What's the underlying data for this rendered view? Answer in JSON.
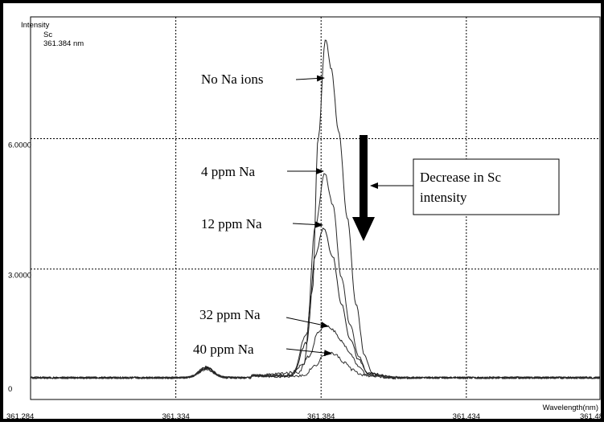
{
  "chart_data": {
    "type": "line",
    "element_label": "Sc",
    "element_wavelength": "361.384 nm",
    "ylabel": "Intensity",
    "xlabel": "Wavelength(nm)",
    "xlim": [
      361.284,
      361.48
    ],
    "ylim": [
      0,
      8.8
    ],
    "x_ticks": [
      361.284,
      361.334,
      361.384,
      361.434,
      361.48
    ],
    "x_tick_labels": [
      "361.284",
      "361.334",
      "361.384",
      "361.434",
      "361.48"
    ],
    "y_ticks": [
      0,
      3.0,
      6.0
    ],
    "y_tick_labels": [
      "0",
      "3.0000",
      "6.0000"
    ],
    "grid": true,
    "series": [
      {
        "name": "No Na ions",
        "baseline": 0.5,
        "peak_x": 361.3855,
        "peak_y": 8.3,
        "points": [
          [
            361.36,
            0.55
          ],
          [
            361.372,
            0.52
          ],
          [
            361.378,
            0.8
          ],
          [
            361.381,
            2.5
          ],
          [
            361.383,
            6.0
          ],
          [
            361.3855,
            8.3
          ],
          [
            361.3875,
            7.6
          ],
          [
            361.39,
            6.2
          ],
          [
            361.393,
            4.2
          ],
          [
            361.396,
            2.2
          ],
          [
            361.399,
            1.0
          ],
          [
            361.402,
            0.55
          ],
          [
            361.41,
            0.5
          ]
        ]
      },
      {
        "name": "4 ppm Na",
        "baseline": 0.5,
        "peak_x": 361.3852,
        "peak_y": 5.2,
        "points": [
          [
            361.36,
            0.55
          ],
          [
            361.374,
            0.55
          ],
          [
            361.379,
            1.5
          ],
          [
            361.382,
            4.0
          ],
          [
            361.3852,
            5.2
          ],
          [
            361.388,
            4.5
          ],
          [
            361.391,
            2.8
          ],
          [
            361.394,
            1.7
          ],
          [
            361.397,
            1.0
          ],
          [
            361.4,
            0.6
          ],
          [
            361.41,
            0.5
          ]
        ]
      },
      {
        "name": "12 ppm Na",
        "baseline": 0.5,
        "peak_x": 361.3848,
        "peak_y": 3.95,
        "points": [
          [
            361.36,
            0.55
          ],
          [
            361.374,
            0.55
          ],
          [
            361.379,
            1.3
          ],
          [
            361.382,
            3.3
          ],
          [
            361.3848,
            3.95
          ],
          [
            361.388,
            3.3
          ],
          [
            361.391,
            2.2
          ],
          [
            361.394,
            1.4
          ],
          [
            361.397,
            0.9
          ],
          [
            361.4,
            0.6
          ],
          [
            361.41,
            0.5
          ]
        ]
      },
      {
        "name": "32 ppm Na",
        "baseline": 0.5,
        "peak_x": 361.3855,
        "peak_y": 1.7,
        "points": [
          [
            361.36,
            0.55
          ],
          [
            361.376,
            0.62
          ],
          [
            361.38,
            1.0
          ],
          [
            361.383,
            1.55
          ],
          [
            361.3855,
            1.7
          ],
          [
            361.388,
            1.6
          ],
          [
            361.391,
            1.35
          ],
          [
            361.394,
            1.05
          ],
          [
            361.397,
            0.75
          ],
          [
            361.4,
            0.55
          ],
          [
            361.41,
            0.5
          ]
        ]
      },
      {
        "name": "40 ppm Na",
        "baseline": 0.5,
        "peak_x": 361.3868,
        "peak_y": 1.1,
        "points": [
          [
            361.36,
            0.55
          ],
          [
            361.378,
            0.55
          ],
          [
            361.382,
            0.78
          ],
          [
            361.385,
            1.02
          ],
          [
            361.3868,
            1.1
          ],
          [
            361.389,
            1.02
          ],
          [
            361.392,
            0.85
          ],
          [
            361.395,
            0.68
          ],
          [
            361.398,
            0.56
          ],
          [
            361.41,
            0.5
          ]
        ]
      }
    ],
    "minor_peak": {
      "x": 361.3445,
      "y": 0.75
    },
    "annotations": [
      {
        "text": "No Na ions",
        "series_index": 0
      },
      {
        "text": "4 ppm Na",
        "series_index": 1
      },
      {
        "text": "12 ppm Na",
        "series_index": 2
      },
      {
        "text": "32 ppm Na",
        "series_index": 3
      },
      {
        "text": "40 ppm Na",
        "series_index": 4
      }
    ],
    "callout": {
      "line1": "Decrease in Sc",
      "line2": "intensity"
    }
  }
}
